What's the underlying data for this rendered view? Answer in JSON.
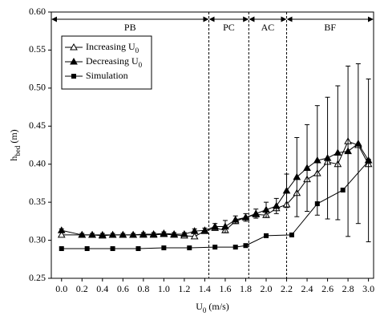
{
  "chart_data": {
    "type": "line",
    "x_label": [
      "U",
      "0",
      " (m/s)"
    ],
    "y_label": [
      "h",
      "bed",
      " (m)"
    ],
    "xlim": [
      -0.1,
      3.05
    ],
    "ylim": [
      0.25,
      0.6
    ],
    "xticks": [
      {
        "value": 0,
        "label": "0.0"
      },
      0.2,
      0.4,
      0.6,
      0.8,
      {
        "value": 1,
        "label": "1.0"
      },
      1.2,
      1.4,
      1.6,
      1.8,
      {
        "value": 2,
        "label": "2.0"
      },
      2.2,
      2.4,
      2.6,
      2.8,
      {
        "value": 3,
        "label": "3.0"
      }
    ],
    "yticks": [
      0.25,
      {
        "value": 0.3,
        "label": "0.30"
      },
      0.35,
      {
        "value": 0.4,
        "label": "0.40"
      },
      0.45,
      {
        "value": 0.5,
        "label": "0.50"
      },
      0.55,
      {
        "value": 0.6,
        "label": "0.60"
      }
    ],
    "legend": "upper left",
    "regions": [
      {
        "label": "PB",
        "range": [
          -0.1,
          1.44
        ]
      },
      {
        "label": "PC",
        "range": [
          1.44,
          1.83
        ]
      },
      {
        "label": "AC",
        "range": [
          1.83,
          2.2
        ]
      },
      {
        "label": "BF",
        "range": [
          2.2,
          3.05
        ]
      }
    ],
    "series": [
      {
        "name": [
          "Increasing U",
          "0"
        ],
        "color": "#000000",
        "marker": "triangle-open",
        "x": [
          0.0,
          0.2,
          0.3,
          0.4,
          0.5,
          0.6,
          0.7,
          0.8,
          0.9,
          1.0,
          1.1,
          1.2,
          1.3,
          1.4,
          1.5,
          1.6,
          1.7,
          1.8,
          1.9,
          2.0,
          2.1,
          2.2,
          2.3,
          2.4,
          2.5,
          2.6,
          2.7,
          2.8,
          2.9,
          3.0
        ],
        "values": [
          0.307,
          0.307,
          0.307,
          0.306,
          0.307,
          0.307,
          0.307,
          0.307,
          0.307,
          0.308,
          0.307,
          0.306,
          0.305,
          0.312,
          0.316,
          0.313,
          0.325,
          0.33,
          0.334,
          0.333,
          0.342,
          0.347,
          0.362,
          0.38,
          0.388,
          0.403,
          0.4,
          0.43,
          0.425,
          0.4
        ]
      },
      {
        "name": [
          "Decreasing U",
          "0"
        ],
        "color": "#000000",
        "marker": "triangle-filled",
        "x": [
          0.0,
          0.2,
          0.3,
          0.4,
          0.5,
          0.6,
          0.7,
          0.8,
          0.9,
          1.0,
          1.1,
          1.2,
          1.3,
          1.4,
          1.5,
          1.6,
          1.7,
          1.8,
          1.9,
          2.0,
          2.1,
          2.2,
          2.3,
          2.4,
          2.5,
          2.6,
          2.7,
          2.8,
          2.9,
          3.0
        ],
        "values": [
          0.313,
          0.307,
          0.307,
          0.307,
          0.307,
          0.307,
          0.307,
          0.308,
          0.308,
          0.309,
          0.308,
          0.308,
          0.312,
          0.313,
          0.318,
          0.318,
          0.327,
          0.33,
          0.335,
          0.34,
          0.345,
          0.365,
          0.383,
          0.395,
          0.405,
          0.408,
          0.415,
          0.417,
          0.427,
          0.405
        ],
        "errors": [
          0.002,
          0.002,
          0.002,
          0.002,
          0.002,
          0.002,
          0.002,
          0.002,
          0.002,
          0.002,
          0.002,
          0.002,
          0.003,
          0.003,
          0.004,
          0.008,
          0.005,
          0.005,
          0.006,
          0.01,
          0.01,
          0.022,
          0.052,
          0.057,
          0.072,
          0.08,
          0.088,
          0.112,
          0.105,
          0.107
        ]
      },
      {
        "name": [
          "Simulation"
        ],
        "color": "#000000",
        "marker": "square",
        "x": [
          0.0,
          0.25,
          0.5,
          0.75,
          1.0,
          1.25,
          1.5,
          1.7,
          1.8,
          2.0,
          2.25,
          2.5,
          2.75,
          3.0
        ],
        "values": [
          0.289,
          0.289,
          0.289,
          0.289,
          0.29,
          0.29,
          0.291,
          0.291,
          0.293,
          0.306,
          0.307,
          0.348,
          0.366,
          0.404
        ]
      }
    ]
  }
}
